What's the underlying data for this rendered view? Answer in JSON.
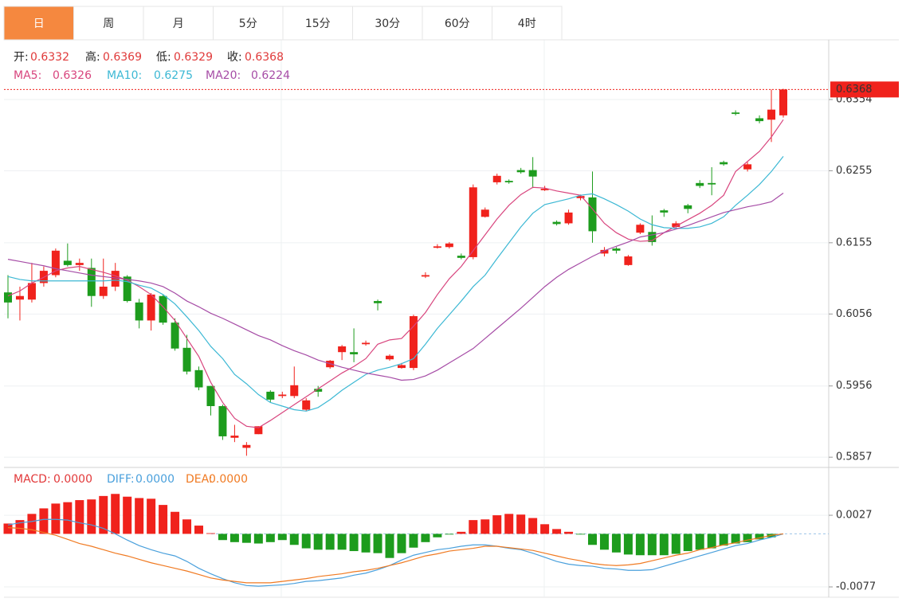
{
  "tabs": [
    "日",
    "周",
    "月",
    "5分",
    "15分",
    "30分",
    "60分",
    "4时"
  ],
  "active_tab": 0,
  "chart_data": [
    {
      "type": "candlestick",
      "ohlc_labels": [
        "开:",
        "高:",
        "低:",
        "收:"
      ],
      "up_color": "#f0221c",
      "down_color": "#1d9c1d",
      "label_color": "#e03a3a",
      "open": [
        0.6086,
        0.6076,
        0.6076,
        0.6099,
        0.611,
        0.613,
        0.6124,
        0.612,
        0.6081,
        0.6094,
        0.6108,
        0.6072,
        0.6047,
        0.6081,
        0.6044,
        0.6009,
        0.5978,
        0.5956,
        0.5928,
        0.5884,
        0.587,
        0.5889,
        0.5948,
        0.5942,
        0.5942,
        0.5923,
        0.5952,
        0.5982,
        0.6003,
        0.6003,
        0.6014,
        0.6074,
        0.5993,
        0.5981,
        0.5981,
        0.6108,
        0.6148,
        0.6149,
        0.6137,
        0.6135,
        0.6191,
        0.6239,
        0.6241,
        0.6256,
        0.6256,
        0.6228,
        0.6184,
        0.6182,
        0.6217,
        0.6218,
        0.614,
        0.6147,
        0.6124,
        0.6169,
        0.617,
        0.62,
        0.6177,
        0.6207,
        0.6238,
        0.6238,
        0.6267,
        0.6336,
        0.6257,
        0.6328,
        0.6326,
        0.6332
      ],
      "high": [
        0.611,
        0.6094,
        0.6127,
        0.6122,
        0.6147,
        0.6154,
        0.6133,
        0.6133,
        0.6133,
        0.6127,
        0.611,
        0.6077,
        0.6085,
        0.6083,
        0.605,
        0.6027,
        0.5983,
        0.5956,
        0.593,
        0.5902,
        0.5878,
        0.59,
        0.595,
        0.5948,
        0.5983,
        0.5939,
        0.5956,
        0.5992,
        0.6013,
        0.6036,
        0.6019,
        0.6076,
        0.6,
        0.5988,
        0.6055,
        0.6114,
        0.6153,
        0.6156,
        0.614,
        0.6236,
        0.6204,
        0.6251,
        0.6243,
        0.6259,
        0.6274,
        0.6234,
        0.6186,
        0.6201,
        0.6222,
        0.6254,
        0.6149,
        0.6149,
        0.6138,
        0.6182,
        0.6193,
        0.6202,
        0.6185,
        0.6209,
        0.6242,
        0.626,
        0.6269,
        0.6339,
        0.6267,
        0.6332,
        0.6368,
        0.6369
      ],
      "low": [
        0.605,
        0.6047,
        0.6072,
        0.6094,
        0.6107,
        0.6122,
        0.6116,
        0.6066,
        0.6077,
        0.6088,
        0.6072,
        0.6036,
        0.6033,
        0.6041,
        0.6005,
        0.5972,
        0.595,
        0.5915,
        0.5881,
        0.5878,
        0.5859,
        0.5889,
        0.5933,
        0.5939,
        0.5939,
        0.5921,
        0.5941,
        0.598,
        0.5992,
        0.5989,
        0.6012,
        0.6061,
        0.5991,
        0.598,
        0.5978,
        0.6106,
        0.6147,
        0.6147,
        0.6132,
        0.6132,
        0.619,
        0.6236,
        0.6237,
        0.6251,
        0.6231,
        0.6227,
        0.6179,
        0.618,
        0.6214,
        0.6155,
        0.6136,
        0.614,
        0.6123,
        0.6167,
        0.6151,
        0.6191,
        0.6175,
        0.6196,
        0.6231,
        0.6221,
        0.6262,
        0.6332,
        0.6254,
        0.6321,
        0.6295,
        0.6329
      ],
      "close": [
        0.6072,
        0.6081,
        0.6099,
        0.6116,
        0.6144,
        0.6124,
        0.6127,
        0.6081,
        0.6094,
        0.6116,
        0.6074,
        0.6047,
        0.6083,
        0.6044,
        0.6008,
        0.5976,
        0.5954,
        0.5928,
        0.5886,
        0.5887,
        0.5874,
        0.59,
        0.5937,
        0.5944,
        0.5957,
        0.5936,
        0.5948,
        0.5991,
        0.6011,
        0.6,
        0.6016,
        0.6071,
        0.5998,
        0.5985,
        0.6053,
        0.611,
        0.615,
        0.6154,
        0.6134,
        0.6232,
        0.6201,
        0.6248,
        0.6239,
        0.6253,
        0.6247,
        0.623,
        0.6181,
        0.6197,
        0.622,
        0.6171,
        0.6145,
        0.6144,
        0.6136,
        0.618,
        0.6156,
        0.6197,
        0.6182,
        0.6202,
        0.6234,
        0.6236,
        0.6264,
        0.6334,
        0.6264,
        0.6324,
        0.634,
        0.6368
      ],
      "series": [
        {
          "name": "MA5:",
          "color": "#d8457e",
          "values": [
            0.6081,
            0.6088,
            0.6099,
            0.6107,
            0.6116,
            0.612,
            0.6122,
            0.6118,
            0.6114,
            0.6109,
            0.6103,
            0.6094,
            0.6083,
            0.6066,
            0.6047,
            0.6022,
            0.5997,
            0.5961,
            0.5933,
            0.5911,
            0.59,
            0.5898,
            0.5908,
            0.5919,
            0.593,
            0.5941,
            0.5952,
            0.5963,
            0.5974,
            0.5983,
            0.5994,
            0.6014,
            0.602,
            0.6022,
            0.6039,
            0.6058,
            0.6083,
            0.6105,
            0.6122,
            0.6144,
            0.6166,
            0.6188,
            0.6207,
            0.6222,
            0.6232,
            0.6231,
            0.6227,
            0.6224,
            0.6221,
            0.6202,
            0.6182,
            0.6169,
            0.616,
            0.6157,
            0.6158,
            0.6169,
            0.6178,
            0.6187,
            0.6196,
            0.6207,
            0.6221,
            0.6254,
            0.6268,
            0.6282,
            0.6302,
            0.6326
          ]
        },
        {
          "name": "MA10:",
          "color": "#3cb8d4",
          "values": [
            0.6108,
            0.6104,
            0.6102,
            0.6102,
            0.6102,
            0.6102,
            0.6102,
            0.6102,
            0.6102,
            0.6103,
            0.6101,
            0.6096,
            0.6092,
            0.6083,
            0.607,
            0.6052,
            0.6033,
            0.6011,
            0.5994,
            0.5972,
            0.5959,
            0.5944,
            0.5933,
            0.5928,
            0.5923,
            0.5921,
            0.5926,
            0.5937,
            0.595,
            0.5961,
            0.5972,
            0.5978,
            0.5982,
            0.5987,
            0.5994,
            0.6014,
            0.6036,
            0.6055,
            0.6074,
            0.6094,
            0.611,
            0.6133,
            0.6155,
            0.6177,
            0.6196,
            0.6208,
            0.6212,
            0.6216,
            0.6221,
            0.6223,
            0.6216,
            0.6208,
            0.6199,
            0.6188,
            0.618,
            0.6176,
            0.6175,
            0.6175,
            0.6177,
            0.6182,
            0.6191,
            0.6207,
            0.6221,
            0.6236,
            0.6254,
            0.6275
          ]
        },
        {
          "name": "MA20:",
          "color": "#a64ca6",
          "values": [
            0.6132,
            0.6129,
            0.6126,
            0.6123,
            0.6119,
            0.6116,
            0.6113,
            0.611,
            0.6108,
            0.6106,
            0.6104,
            0.6102,
            0.6099,
            0.6094,
            0.6085,
            0.6074,
            0.6066,
            0.6057,
            0.605,
            0.6042,
            0.6034,
            0.6026,
            0.602,
            0.6012,
            0.6005,
            0.5999,
            0.5992,
            0.5987,
            0.5982,
            0.5978,
            0.5974,
            0.5971,
            0.5968,
            0.5964,
            0.5965,
            0.597,
            0.5978,
            0.5988,
            0.5998,
            0.6008,
            0.6022,
            0.6036,
            0.605,
            0.6064,
            0.6079,
            0.6094,
            0.6107,
            0.6118,
            0.6127,
            0.6136,
            0.6144,
            0.615,
            0.6156,
            0.6163,
            0.6166,
            0.6169,
            0.6174,
            0.6179,
            0.6185,
            0.6191,
            0.6197,
            0.6201,
            0.6205,
            0.6208,
            0.6212,
            0.6224
          ]
        }
      ],
      "ylim": [
        0.5845,
        0.6437
      ],
      "yticks": [
        0.6354,
        0.6255,
        0.6155,
        0.6056,
        0.5956,
        0.5857
      ],
      "grid": true
    },
    {
      "type": "macd",
      "up_color": "#f0221c",
      "down_color": "#1d9c1d",
      "series": [
        {
          "name": "MACD:",
          "color": "#e2393a",
          "value_label": "0.0000",
          "values": [
            0.0015,
            0.002,
            0.0029,
            0.0037,
            0.0044,
            0.0046,
            0.0049,
            0.005,
            0.0055,
            0.0058,
            0.0054,
            0.0052,
            0.0051,
            0.0042,
            0.0032,
            0.0021,
            0.0012,
            0.0001,
            -0.0009,
            -0.0012,
            -0.0013,
            -0.0014,
            -0.0012,
            -0.0009,
            -0.0016,
            -0.0021,
            -0.0023,
            -0.0023,
            -0.0023,
            -0.0025,
            -0.0027,
            -0.0028,
            -0.0035,
            -0.0028,
            -0.002,
            -0.0012,
            -0.0005,
            -0.0001,
            0.0003,
            0.002,
            0.0021,
            0.0027,
            0.0029,
            0.0028,
            0.0023,
            0.0014,
            0.0007,
            0.0003,
            -0.0001,
            -0.0016,
            -0.0023,
            -0.0027,
            -0.003,
            -0.0031,
            -0.0031,
            -0.0031,
            -0.0029,
            -0.0025,
            -0.0023,
            -0.0021,
            -0.0017,
            -0.0014,
            -0.0012,
            -0.0008,
            -0.0005,
            0
          ]
        },
        {
          "name": "DIFF:",
          "color": "#4aa0dc",
          "value_label": "0.0000",
          "values": [
            0.0013,
            0.0016,
            0.0018,
            0.0021,
            0.0021,
            0.002,
            0.0016,
            0.0013,
            0.0008,
            0,
            -0.0009,
            -0.0017,
            -0.0023,
            -0.0028,
            -0.0032,
            -0.004,
            -0.005,
            -0.0058,
            -0.0065,
            -0.0071,
            -0.0075,
            -0.0076,
            -0.0075,
            -0.0074,
            -0.0072,
            -0.0069,
            -0.0068,
            -0.0066,
            -0.0064,
            -0.006,
            -0.0057,
            -0.0052,
            -0.0046,
            -0.0038,
            -0.0031,
            -0.0027,
            -0.0023,
            -0.0021,
            -0.0018,
            -0.0016,
            -0.0016,
            -0.0018,
            -0.0021,
            -0.0023,
            -0.0028,
            -0.0034,
            -0.004,
            -0.0044,
            -0.0046,
            -0.0047,
            -0.005,
            -0.0051,
            -0.0053,
            -0.0053,
            -0.0052,
            -0.0047,
            -0.0042,
            -0.0037,
            -0.0032,
            -0.0027,
            -0.0022,
            -0.0017,
            -0.0014,
            -0.0009,
            -0.0005,
            0
          ]
        },
        {
          "name": "DEA:",
          "color": "#f07a22",
          "value_label": "0.0000",
          "values": [
            0.0009,
            0.0008,
            0.0006,
            0.0002,
            -0.0002,
            -0.0008,
            -0.0014,
            -0.0018,
            -0.0023,
            -0.0028,
            -0.0032,
            -0.0037,
            -0.0042,
            -0.0046,
            -0.005,
            -0.0054,
            -0.0059,
            -0.0064,
            -0.0067,
            -0.0069,
            -0.0071,
            -0.0071,
            -0.0071,
            -0.0069,
            -0.0067,
            -0.0065,
            -0.0062,
            -0.006,
            -0.0058,
            -0.0055,
            -0.0053,
            -0.005,
            -0.0046,
            -0.0042,
            -0.0037,
            -0.0032,
            -0.0029,
            -0.0025,
            -0.0023,
            -0.0021,
            -0.0018,
            -0.0018,
            -0.002,
            -0.0022,
            -0.0024,
            -0.0028,
            -0.0032,
            -0.0036,
            -0.0039,
            -0.0043,
            -0.0045,
            -0.0046,
            -0.0045,
            -0.0043,
            -0.0039,
            -0.0035,
            -0.0031,
            -0.0028,
            -0.0023,
            -0.002,
            -0.0016,
            -0.0013,
            -0.0009,
            -0.0006,
            -0.0002,
            0
          ]
        }
      ],
      "ylim": [
        -0.0092,
        0.0093
      ],
      "yticks": [
        0.0027,
        -0.0077
      ],
      "grid": true
    }
  ]
}
